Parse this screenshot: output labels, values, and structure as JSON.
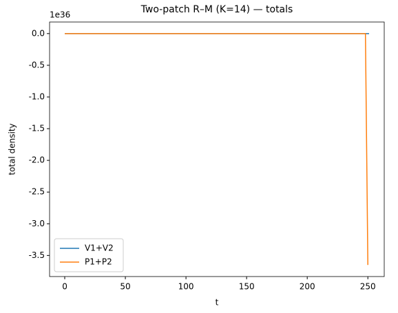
{
  "chart_data": {
    "type": "line",
    "title": "Two-patch R–M (K=14) — totals",
    "x_label": "t",
    "y_label": "total density",
    "y_offset_label": "1e36",
    "series": [
      {
        "name": "V1+V2",
        "color": "#1f77b4",
        "x": [
          0,
          50,
          100,
          150,
          200,
          251
        ],
        "values": [
          0,
          0,
          0,
          0,
          0,
          0
        ]
      },
      {
        "name": "P1+P2",
        "color": "#ff7f0e",
        "x": [
          0,
          50,
          100,
          150,
          200,
          248,
          250
        ],
        "values": [
          0,
          0,
          0,
          0,
          0,
          0,
          -3.65
        ]
      }
    ],
    "xlim": [
      -12.5,
      263.5
    ],
    "ylim": [
      -3.8325,
      0.1825
    ],
    "xticks": [
      0,
      50,
      100,
      150,
      200,
      250
    ],
    "yticks": [
      {
        "value": -3.5,
        "label": "-3.5"
      },
      {
        "value": -3.0,
        "label": "-3.0"
      },
      {
        "value": -2.5,
        "label": "-2.5"
      },
      {
        "value": -2.0,
        "label": "-2.0"
      },
      {
        "value": -1.5,
        "label": "-1.5"
      },
      {
        "value": -1.0,
        "label": "-1.0"
      },
      {
        "value": -0.5,
        "label": "-0.5"
      },
      {
        "value": 0,
        "label": "0.0"
      }
    ],
    "grid": false,
    "legend": "lower left"
  }
}
